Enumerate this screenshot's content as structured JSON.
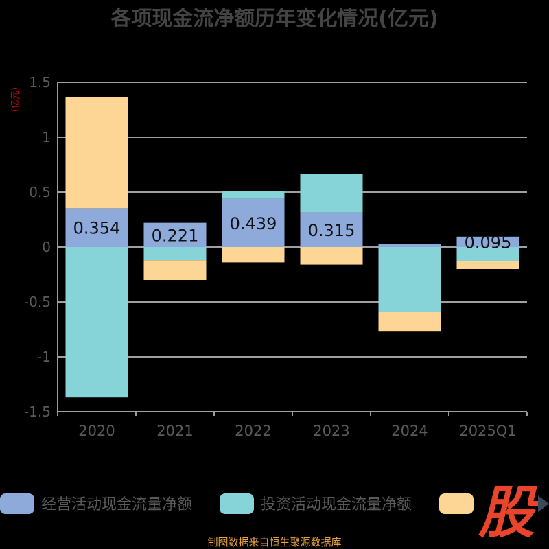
{
  "chart_data": {
    "type": "bar",
    "stacked": true,
    "title": "各项现金流净额历年变化情况(亿元)",
    "ylabel": "(亿元)",
    "categories": [
      "2020",
      "2021",
      "2022",
      "2023",
      "2024",
      "2025Q1"
    ],
    "ylim": [
      -1.5,
      1.5
    ],
    "yticks": [
      1.5,
      1,
      0.5,
      0,
      -0.5,
      -1,
      -1.5
    ],
    "ytick_labels": [
      "1.5",
      "1",
      "0.5",
      "0",
      "-0.5",
      "-1",
      "-1.5"
    ],
    "grid": true,
    "legend_position": "bottom",
    "series": [
      {
        "name": "经营活动现金流量净额",
        "color": "#8eaadb",
        "values": [
          0.354,
          0.221,
          0.439,
          0.315,
          0.03,
          0.095
        ],
        "labels": [
          "0.354",
          "0.221",
          "0.439",
          "0.315",
          "",
          "0.095"
        ]
      },
      {
        "name": "投资活动现金流量净额",
        "color": "#86d4d8",
        "values": [
          -1.37,
          -0.12,
          0.07,
          0.35,
          -0.59,
          -0.13
        ],
        "labels": [
          "",
          "",
          "",
          "",
          "",
          ""
        ]
      },
      {
        "name": "",
        "color": "#fdd695",
        "values": [
          1.01,
          -0.18,
          -0.14,
          -0.16,
          -0.18,
          -0.07
        ],
        "labels": [
          "",
          "",
          "",
          "",
          "",
          ""
        ]
      }
    ]
  },
  "footer": {
    "source_text": "制图数据来自恒生聚源数据库"
  },
  "watermark": {
    "glyph": "股"
  },
  "colors": {
    "background": "#000000",
    "grid": "#ffffff",
    "axis_text": "#5a5a5a",
    "title": "#444444",
    "source": "#e8a33c",
    "ylabel": "#cc0000"
  }
}
